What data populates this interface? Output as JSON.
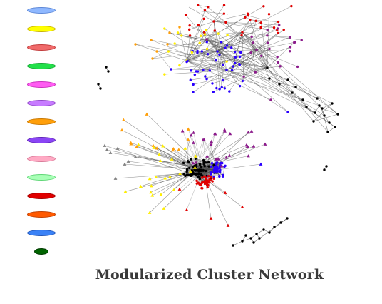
{
  "caption": "Modularized Cluster Network",
  "legend": [
    {
      "fill": "#8fb8ff",
      "stroke": "#5b86d6"
    },
    {
      "fill": "#ffff00",
      "stroke": "#c8b400"
    },
    {
      "fill": "#f06a6a",
      "stroke": "#c23a3a"
    },
    {
      "fill": "#22e04a",
      "stroke": "#17a535"
    },
    {
      "fill": "#ff5cf2",
      "stroke": "#c930bd"
    },
    {
      "fill": "#c77cff",
      "stroke": "#9046c8"
    },
    {
      "fill": "#ff9f0a",
      "stroke": "#c97800"
    },
    {
      "fill": "#8a45f5",
      "stroke": "#5e22b8"
    },
    {
      "fill": "#ffaac4",
      "stroke": "#d97a98"
    },
    {
      "fill": "#a8ffb6",
      "stroke": "#5fd676"
    },
    {
      "fill": "#e00000",
      "stroke": "#a00000"
    },
    {
      "fill": "#ff5a00",
      "stroke": "#c04000"
    },
    {
      "fill": "#3b82f6",
      "stroke": "#2155b8"
    },
    {
      "fill": "#006400",
      "stroke": "#003b00"
    }
  ],
  "node_colors": {
    "black": "#000000",
    "red": "#e00000",
    "blue": "#2a00ff",
    "yellow": "#ffee00",
    "orange": "#ff9f0a",
    "purple": "#8b1a8b",
    "gray": "#808080"
  },
  "edge_color": "#4a4a4a"
}
